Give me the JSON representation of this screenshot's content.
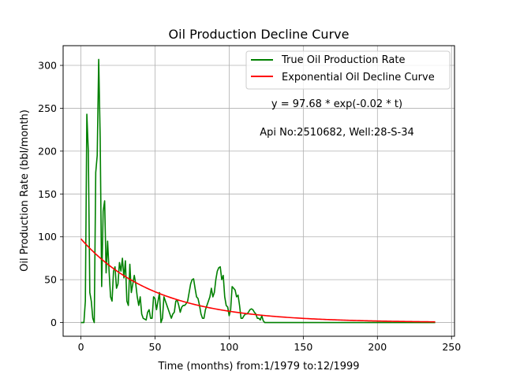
{
  "chart_data": {
    "type": "line",
    "title": "Oil Production Decline Curve",
    "xlabel": "Time (months) from:1/1979 to:12/1999",
    "ylabel": "Oil Production Rate (bbl/month)",
    "xlim": [
      -12,
      252
    ],
    "ylim": [
      -16,
      323
    ],
    "xticks": [
      0,
      50,
      100,
      150,
      200,
      250
    ],
    "yticks": [
      0,
      50,
      100,
      150,
      200,
      250,
      300
    ],
    "grid": true,
    "legend_position": "top-right",
    "annotations": [
      {
        "text": "y = 97.68 * exp(-0.02 * t)"
      },
      {
        "text": "Api No:2510682, Well:28-S-34"
      }
    ],
    "series": [
      {
        "name": "True Oil Production Rate",
        "color": "#008000",
        "x": [
          0,
          1,
          2,
          3,
          4,
          5,
          6,
          7,
          8,
          9,
          10,
          11,
          12,
          13,
          14,
          15,
          16,
          17,
          18,
          19,
          20,
          21,
          22,
          23,
          24,
          25,
          26,
          27,
          28,
          29,
          30,
          31,
          32,
          33,
          34,
          35,
          36,
          37,
          38,
          39,
          40,
          41,
          42,
          43,
          44,
          45,
          46,
          47,
          48,
          49,
          50,
          51,
          52,
          53,
          54,
          55,
          56,
          57,
          58,
          59,
          60,
          61,
          62,
          63,
          64,
          65,
          66,
          67,
          68,
          69,
          70,
          71,
          72,
          73,
          74,
          75,
          76,
          77,
          78,
          79,
          80,
          81,
          82,
          83,
          84,
          85,
          86,
          87,
          88,
          89,
          90,
          91,
          92,
          93,
          94,
          95,
          96,
          97,
          98,
          99,
          100,
          101,
          102,
          103,
          104,
          105,
          106,
          107,
          108,
          109,
          110,
          111,
          112,
          113,
          114,
          115,
          116,
          117,
          118,
          119,
          120,
          121,
          122,
          123,
          124,
          125,
          126,
          127,
          128,
          129,
          130,
          140,
          150,
          160,
          170,
          180,
          190,
          200,
          210,
          220,
          230,
          239
        ],
        "y": [
          0,
          0,
          0,
          25,
          243,
          200,
          35,
          25,
          5,
          0,
          175,
          195,
          307,
          215,
          42,
          130,
          142,
          58,
          95,
          60,
          30,
          25,
          60,
          65,
          40,
          45,
          70,
          60,
          75,
          52,
          72,
          25,
          20,
          68,
          35,
          45,
          55,
          45,
          30,
          20,
          30,
          10,
          5,
          4,
          3,
          12,
          15,
          5,
          5,
          30,
          28,
          15,
          25,
          35,
          0,
          5,
          30,
          25,
          20,
          15,
          10,
          5,
          10,
          12,
          25,
          26,
          20,
          12,
          18,
          20,
          20,
          22,
          25,
          35,
          45,
          50,
          51,
          40,
          30,
          28,
          20,
          10,
          5,
          5,
          15,
          20,
          25,
          30,
          40,
          30,
          35,
          50,
          60,
          64,
          65,
          50,
          55,
          30,
          20,
          18,
          8,
          15,
          42,
          40,
          38,
          30,
          32,
          20,
          5,
          5,
          8,
          10,
          10,
          12,
          15,
          16,
          15,
          12,
          10,
          5,
          5,
          3,
          8,
          2,
          0,
          0,
          0,
          0,
          0,
          0,
          0,
          0,
          0,
          0,
          0,
          0,
          0,
          0,
          0,
          0,
          0,
          0
        ]
      },
      {
        "name": "Exponential Oil Decline Curve",
        "color": "#ff0000",
        "model": {
          "a": 97.68,
          "b": -0.02,
          "t_start": 0,
          "t_end": 239
        }
      }
    ]
  }
}
